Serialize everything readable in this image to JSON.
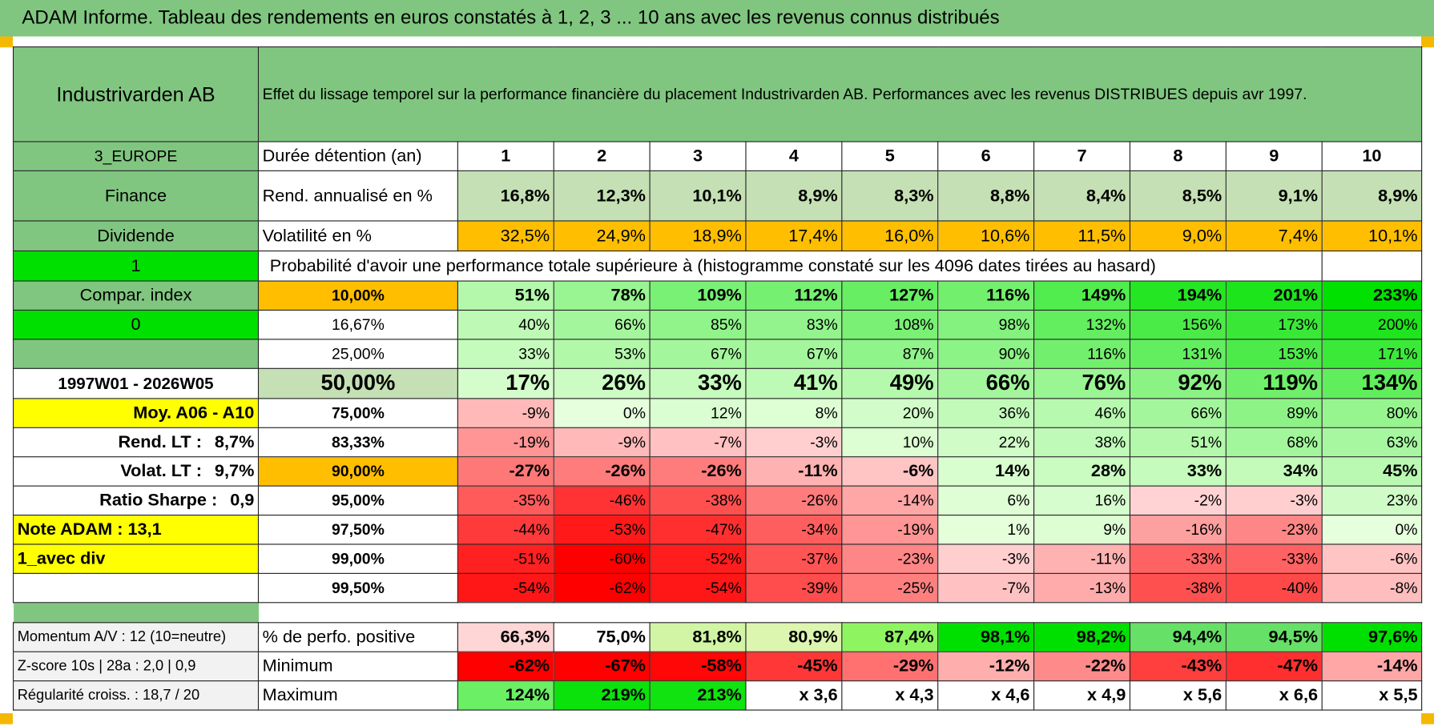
{
  "title": "ADAM Informe. Tableau des rendements en euros constatés à 1, 2, 3 ... 10 ans avec les revenus connus distribués",
  "header": {
    "company": "Industrivarden AB",
    "description": "Effet du lissage temporel sur la performance financière du placement Industrivarden AB. Performances avec les revenus DISTRIBUES depuis avr 1997."
  },
  "side": {
    "region": "3_EUROPE",
    "sector": "Finance",
    "type": "Dividende",
    "flag1": "1",
    "compar_index": "Compar. index",
    "flag0": "0",
    "period": "1997W01 - 2026W05",
    "moy": "Moy. A06 - A10",
    "rend_lt_label": "Rend. LT :",
    "rend_lt_value": "8,7%",
    "volat_lt_label": "Volat. LT :",
    "volat_lt_value": "9,7%",
    "sharpe_label": "Ratio Sharpe :",
    "sharpe_value": "0,9",
    "note": "Note ADAM : 13,1",
    "avec_div": "1_avec div",
    "momentum": "Momentum A/V : 12 (10=neutre)",
    "zscore": "Z-score 10s | 28a : 2,0 | 0,9",
    "regularite": "Régularité croiss. : 18,7 / 20"
  },
  "rows": {
    "duree_label": "Durée détention (an)",
    "years": [
      "1",
      "2",
      "3",
      "4",
      "5",
      "6",
      "7",
      "8",
      "9",
      "10"
    ],
    "rend_label": "Rend. annualisé en %",
    "rend": [
      "16,8%",
      "12,3%",
      "10,1%",
      "8,9%",
      "8,3%",
      "8,8%",
      "8,4%",
      "8,5%",
      "9,1%",
      "8,9%"
    ],
    "vol_label": "Volatilité en %",
    "vol": [
      "32,5%",
      "24,9%",
      "18,9%",
      "17,4%",
      "16,0%",
      "10,6%",
      "11,5%",
      "9,0%",
      "7,4%",
      "10,1%"
    ],
    "proba_label": "Probabilité d'avoir une performance totale supérieure à (histogramme constaté sur les 4096 dates tirées au hasard)",
    "pos_label": "% de perfo. positive",
    "pos": [
      "66,3%",
      "75,0%",
      "81,8%",
      "80,9%",
      "87,4%",
      "98,1%",
      "98,2%",
      "94,4%",
      "94,5%",
      "97,6%"
    ],
    "min_label": "Minimum",
    "min": [
      "-62%",
      "-67%",
      "-58%",
      "-45%",
      "-29%",
      "-12%",
      "-22%",
      "-43%",
      "-47%",
      "-14%"
    ],
    "max_label": "Maximum",
    "max": [
      "124%",
      "219%",
      "213%",
      "x 3,6",
      "x 4,3",
      "x 4,6",
      "x 4,9",
      "x 5,6",
      "x 6,6",
      "x 5,5"
    ]
  },
  "percentiles": [
    {
      "label": "10,00%",
      "values": [
        "51%",
        "78%",
        "109%",
        "112%",
        "127%",
        "116%",
        "149%",
        "194%",
        "201%",
        "233%"
      ]
    },
    {
      "label": "16,67%",
      "values": [
        "40%",
        "66%",
        "85%",
        "83%",
        "108%",
        "98%",
        "132%",
        "156%",
        "173%",
        "200%"
      ]
    },
    {
      "label": "25,00%",
      "values": [
        "33%",
        "53%",
        "67%",
        "67%",
        "87%",
        "90%",
        "116%",
        "131%",
        "153%",
        "171%"
      ]
    },
    {
      "label": "50,00%",
      "values": [
        "17%",
        "26%",
        "33%",
        "41%",
        "49%",
        "66%",
        "76%",
        "92%",
        "119%",
        "134%"
      ]
    },
    {
      "label": "75,00%",
      "values": [
        "-9%",
        "0%",
        "12%",
        "8%",
        "20%",
        "36%",
        "46%",
        "66%",
        "89%",
        "80%"
      ]
    },
    {
      "label": "83,33%",
      "values": [
        "-19%",
        "-9%",
        "-7%",
        "-3%",
        "10%",
        "22%",
        "38%",
        "51%",
        "68%",
        "63%"
      ]
    },
    {
      "label": "90,00%",
      "values": [
        "-27%",
        "-26%",
        "-26%",
        "-11%",
        "-6%",
        "14%",
        "28%",
        "33%",
        "34%",
        "45%"
      ]
    },
    {
      "label": "95,00%",
      "values": [
        "-35%",
        "-46%",
        "-38%",
        "-26%",
        "-14%",
        "6%",
        "16%",
        "-2%",
        "-3%",
        "23%"
      ]
    },
    {
      "label": "97,50%",
      "values": [
        "-44%",
        "-53%",
        "-47%",
        "-34%",
        "-19%",
        "1%",
        "9%",
        "-16%",
        "-23%",
        "0%"
      ]
    },
    {
      "label": "99,00%",
      "values": [
        "-51%",
        "-60%",
        "-52%",
        "-37%",
        "-23%",
        "-3%",
        "-11%",
        "-33%",
        "-33%",
        "-6%"
      ]
    },
    {
      "label": "99,50%",
      "values": [
        "-54%",
        "-62%",
        "-54%",
        "-39%",
        "-25%",
        "-7%",
        "-13%",
        "-38%",
        "-40%",
        "-8%"
      ]
    }
  ],
  "colors": {
    "header_green": "#80c680",
    "light_green": "#c5e0b4",
    "bright_green": "#00e000",
    "yellow": "#ffff00",
    "orange": "#ffbf00",
    "red": "#e00000"
  }
}
